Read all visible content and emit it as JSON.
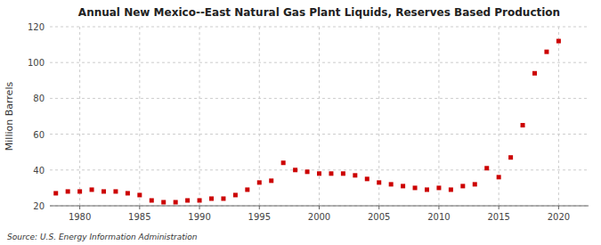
{
  "chart_data": {
    "type": "scatter",
    "title": "Annual New Mexico--East Natural Gas Plant Liquids, Reserves Based Production",
    "ylabel": "Million Barrels",
    "annotations": [
      "Source: U.S. Energy Information Administration"
    ],
    "x": [
      1978,
      1979,
      1980,
      1981,
      1982,
      1983,
      1984,
      1985,
      1986,
      1987,
      1988,
      1989,
      1990,
      1991,
      1992,
      1993,
      1994,
      1995,
      1996,
      1997,
      1998,
      1999,
      2000,
      2001,
      2002,
      2003,
      2004,
      2005,
      2006,
      2007,
      2008,
      2009,
      2010,
      2011,
      2012,
      2013,
      2014,
      2015,
      2016,
      2017,
      2018,
      2019,
      2020
    ],
    "values": [
      27,
      28,
      28,
      29,
      28,
      28,
      27,
      26,
      23,
      22,
      22,
      23,
      23,
      24,
      24,
      26,
      29,
      33,
      34,
      44,
      40,
      39,
      38,
      38,
      38,
      37,
      35,
      33,
      32,
      31,
      30,
      29,
      30,
      29,
      31,
      32,
      41,
      36,
      47,
      65,
      94,
      106,
      112
    ],
    "color": "#cc0000",
    "marker": "square",
    "grid": true,
    "xlim": [
      1977.5,
      2022.5
    ],
    "xticks": [
      1980,
      1985,
      1990,
      1995,
      2000,
      2005,
      2010,
      2015,
      2020
    ],
    "ylim": [
      20,
      120
    ],
    "yticks": [
      20,
      40,
      60,
      80,
      100,
      120
    ]
  }
}
